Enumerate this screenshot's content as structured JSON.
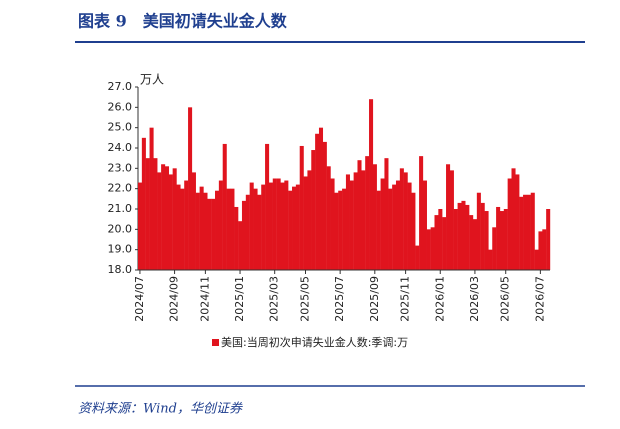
{
  "chart_data": {
    "type": "bar",
    "title": "图表 9　美国初请失业金人数",
    "y_label": "万人",
    "categories": [
      "2024/07",
      null,
      null,
      null,
      null,
      null,
      null,
      null,
      null,
      "2024/09",
      null,
      null,
      null,
      null,
      null,
      null,
      null,
      "2024/11",
      null,
      null,
      null,
      null,
      null,
      null,
      null,
      null,
      "2025/01",
      null,
      null,
      null,
      null,
      null,
      null,
      null,
      null,
      "2025/03",
      null,
      null,
      null,
      null,
      null,
      null,
      null,
      "2025/05",
      null,
      null,
      null,
      null,
      null,
      null,
      null,
      null,
      "2025/07",
      null,
      null,
      null,
      null,
      null,
      null,
      null,
      null,
      "2025/09",
      null,
      null,
      null,
      null,
      null,
      null,
      null,
      "2025/11",
      null,
      null,
      null,
      null,
      null,
      null,
      null,
      null,
      "2026/01",
      null,
      null,
      null,
      null,
      null,
      null,
      null,
      null,
      "2026/03",
      null,
      null,
      null,
      null,
      null,
      null,
      null,
      "2026/05",
      null,
      null,
      null,
      null,
      null,
      null,
      null,
      null,
      "2026/07",
      null,
      null
    ],
    "series": [
      {
        "name": "美国:当周初次申请失业金人数:季调:万",
        "color": "#e0141e",
        "values": [
          22.3,
          24.5,
          23.5,
          25.0,
          23.5,
          22.8,
          23.2,
          23.1,
          22.7,
          23.0,
          22.2,
          22.0,
          22.4,
          26.0,
          22.8,
          21.8,
          22.1,
          21.8,
          21.5,
          21.5,
          21.9,
          22.4,
          24.2,
          22.0,
          22.0,
          21.1,
          20.4,
          21.4,
          21.7,
          22.3,
          22.0,
          21.7,
          22.2,
          24.2,
          22.3,
          22.5,
          22.5,
          22.3,
          22.4,
          21.9,
          22.1,
          22.2,
          24.1,
          22.6,
          22.9,
          23.9,
          24.7,
          25.0,
          24.3,
          23.1,
          22.5,
          21.8,
          21.9,
          22.0,
          22.7,
          22.4,
          22.8,
          23.4,
          22.9,
          23.6,
          26.4,
          23.2,
          21.9,
          22.5,
          23.5,
          22.0,
          22.2,
          22.4,
          23.0,
          22.8,
          22.3,
          21.8,
          19.2,
          23.6,
          22.4,
          20.0,
          20.1,
          20.7,
          21.0,
          20.6,
          23.2,
          22.9,
          21.0,
          21.3,
          21.4,
          21.2,
          20.7,
          20.5,
          21.8,
          21.3,
          20.9,
          19.0,
          20.1,
          21.1,
          20.9,
          21.0,
          22.5,
          23.0,
          22.7,
          21.6,
          21.7,
          21.7,
          21.8,
          19.0,
          19.9,
          20.0,
          21.0
        ]
      }
    ],
    "ylim": [
      18,
      27
    ],
    "yticks": [
      {
        "value": 18,
        "label": "18.0"
      },
      {
        "value": 19,
        "label": "19.0"
      },
      {
        "value": 20,
        "label": "20.0"
      },
      {
        "value": 21,
        "label": "21.0"
      },
      {
        "value": 22,
        "label": "22.0"
      },
      {
        "value": 23,
        "label": "23.0"
      },
      {
        "value": 24,
        "label": "24.0"
      },
      {
        "value": 25,
        "label": "25.0"
      },
      {
        "value": 26,
        "label": "26.0"
      },
      {
        "value": 27,
        "label": "27.0"
      }
    ],
    "grid": false
  },
  "source": "资料来源：Wind，华创证券"
}
